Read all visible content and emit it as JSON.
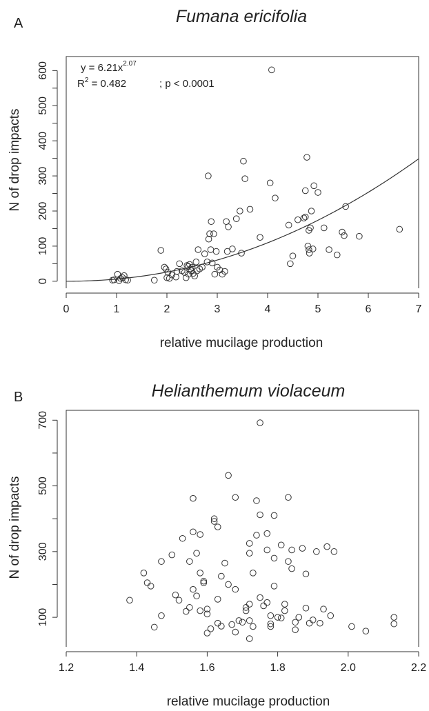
{
  "chart_data": [
    {
      "panel": "A",
      "type": "scatter",
      "title": "Fumana ericifolia",
      "xlabel": "relative mucilage production",
      "ylabel": "N of drop impacts",
      "xlim": [
        0,
        7
      ],
      "ylim": [
        -20,
        640
      ],
      "xticks": [
        "0",
        "1",
        "2",
        "3",
        "4",
        "5",
        "6",
        "7"
      ],
      "yticks": [
        "0",
        "100",
        "200",
        "300",
        "400",
        "500",
        "600"
      ],
      "annotation": {
        "equation": "y = 6.21x",
        "exponent": "2.07",
        "r2_label": "R",
        "r2_sup": "2",
        "r2_value": " = 0.482",
        "p_value": "; p < 0.0001"
      },
      "fit": {
        "type": "power",
        "a": 6.21,
        "b": 2.07
      },
      "points": [
        [
          0.92,
          3
        ],
        [
          0.95,
          4
        ],
        [
          1.02,
          20
        ],
        [
          1.05,
          2
        ],
        [
          1.08,
          8
        ],
        [
          1.12,
          10
        ],
        [
          1.15,
          16
        ],
        [
          1.18,
          4
        ],
        [
          1.22,
          3
        ],
        [
          1.75,
          3
        ],
        [
          1.88,
          88
        ],
        [
          1.95,
          40
        ],
        [
          1.98,
          35
        ],
        [
          2.0,
          10
        ],
        [
          2.02,
          25
        ],
        [
          2.05,
          8
        ],
        [
          2.1,
          18
        ],
        [
          2.18,
          12
        ],
        [
          2.2,
          28
        ],
        [
          2.25,
          50
        ],
        [
          2.3,
          30
        ],
        [
          2.35,
          25
        ],
        [
          2.38,
          10
        ],
        [
          2.4,
          45
        ],
        [
          2.42,
          42
        ],
        [
          2.43,
          20
        ],
        [
          2.45,
          48
        ],
        [
          2.47,
          35
        ],
        [
          2.48,
          30
        ],
        [
          2.5,
          40
        ],
        [
          2.52,
          22
        ],
        [
          2.55,
          15
        ],
        [
          2.58,
          55
        ],
        [
          2.6,
          30
        ],
        [
          2.62,
          90
        ],
        [
          2.65,
          35
        ],
        [
          2.7,
          40
        ],
        [
          2.75,
          78
        ],
        [
          2.8,
          55
        ],
        [
          2.82,
          300
        ],
        [
          2.83,
          120
        ],
        [
          2.85,
          135
        ],
        [
          2.87,
          90
        ],
        [
          2.88,
          170
        ],
        [
          2.9,
          52
        ],
        [
          2.93,
          135
        ],
        [
          2.95,
          20
        ],
        [
          2.98,
          85
        ],
        [
          3.0,
          40
        ],
        [
          3.05,
          32
        ],
        [
          3.1,
          20
        ],
        [
          3.15,
          28
        ],
        [
          3.18,
          170
        ],
        [
          3.2,
          85
        ],
        [
          3.22,
          155
        ],
        [
          3.3,
          92
        ],
        [
          3.38,
          178
        ],
        [
          3.45,
          200
        ],
        [
          3.48,
          80
        ],
        [
          3.52,
          342
        ],
        [
          3.55,
          292
        ],
        [
          3.65,
          205
        ],
        [
          3.85,
          125
        ],
        [
          4.05,
          280
        ],
        [
          4.08,
          602
        ],
        [
          4.15,
          237
        ],
        [
          4.42,
          160
        ],
        [
          4.45,
          50
        ],
        [
          4.5,
          72
        ],
        [
          4.6,
          175
        ],
        [
          4.72,
          180
        ],
        [
          4.75,
          183
        ],
        [
          4.75,
          258
        ],
        [
          4.78,
          353
        ],
        [
          4.8,
          100
        ],
        [
          4.82,
          90
        ],
        [
          4.82,
          145
        ],
        [
          4.83,
          80
        ],
        [
          4.85,
          152
        ],
        [
          4.87,
          200
        ],
        [
          4.9,
          92
        ],
        [
          4.92,
          272
        ],
        [
          5.0,
          253
        ],
        [
          5.12,
          152
        ],
        [
          5.22,
          90
        ],
        [
          5.38,
          75
        ],
        [
          5.48,
          140
        ],
        [
          5.52,
          130
        ],
        [
          5.55,
          213
        ],
        [
          5.82,
          128
        ],
        [
          6.62,
          148
        ]
      ]
    },
    {
      "panel": "B",
      "type": "scatter",
      "title": "Helianthemum violaceum",
      "xlabel": "relative mucilage production",
      "ylabel": "N of drop impacts",
      "xlim": [
        1.2,
        2.2
      ],
      "ylim": [
        10,
        730
      ],
      "xticks": [
        "1.2",
        "1.4",
        "1.6",
        "1.8",
        "2.0",
        "2.2"
      ],
      "yticks": [
        "100",
        "300",
        "500",
        "700"
      ],
      "points": [
        [
          1.38,
          152
        ],
        [
          1.42,
          235
        ],
        [
          1.43,
          205
        ],
        [
          1.44,
          195
        ],
        [
          1.45,
          70
        ],
        [
          1.47,
          105
        ],
        [
          1.47,
          270
        ],
        [
          1.5,
          290
        ],
        [
          1.51,
          168
        ],
        [
          1.52,
          152
        ],
        [
          1.53,
          340
        ],
        [
          1.54,
          118
        ],
        [
          1.55,
          270
        ],
        [
          1.55,
          130
        ],
        [
          1.56,
          185
        ],
        [
          1.56,
          360
        ],
        [
          1.56,
          462
        ],
        [
          1.57,
          295
        ],
        [
          1.57,
          165
        ],
        [
          1.58,
          120
        ],
        [
          1.58,
          235
        ],
        [
          1.58,
          352
        ],
        [
          1.59,
          205
        ],
        [
          1.59,
          210
        ],
        [
          1.6,
          52
        ],
        [
          1.6,
          110
        ],
        [
          1.6,
          125
        ],
        [
          1.61,
          65
        ],
        [
          1.62,
          392
        ],
        [
          1.62,
          400
        ],
        [
          1.63,
          375
        ],
        [
          1.63,
          155
        ],
        [
          1.63,
          82
        ],
        [
          1.64,
          73
        ],
        [
          1.64,
          225
        ],
        [
          1.65,
          265
        ],
        [
          1.66,
          532
        ],
        [
          1.66,
          200
        ],
        [
          1.67,
          78
        ],
        [
          1.68,
          465
        ],
        [
          1.68,
          55
        ],
        [
          1.68,
          185
        ],
        [
          1.69,
          90
        ],
        [
          1.7,
          85
        ],
        [
          1.71,
          130
        ],
        [
          1.71,
          120
        ],
        [
          1.72,
          325
        ],
        [
          1.72,
          295
        ],
        [
          1.72,
          140
        ],
        [
          1.72,
          90
        ],
        [
          1.72,
          35
        ],
        [
          1.73,
          235
        ],
        [
          1.73,
          72
        ],
        [
          1.74,
          350
        ],
        [
          1.74,
          455
        ],
        [
          1.75,
          412
        ],
        [
          1.75,
          160
        ],
        [
          1.75,
          692
        ],
        [
          1.76,
          135
        ],
        [
          1.77,
          355
        ],
        [
          1.77,
          305
        ],
        [
          1.77,
          145
        ],
        [
          1.78,
          105
        ],
        [
          1.78,
          80
        ],
        [
          1.78,
          72
        ],
        [
          1.79,
          410
        ],
        [
          1.79,
          280
        ],
        [
          1.79,
          195
        ],
        [
          1.8,
          100
        ],
        [
          1.81,
          320
        ],
        [
          1.81,
          98
        ],
        [
          1.82,
          140
        ],
        [
          1.82,
          120
        ],
        [
          1.83,
          465
        ],
        [
          1.83,
          270
        ],
        [
          1.84,
          305
        ],
        [
          1.84,
          248
        ],
        [
          1.85,
          85
        ],
        [
          1.85,
          62
        ],
        [
          1.86,
          100
        ],
        [
          1.87,
          310
        ],
        [
          1.88,
          232
        ],
        [
          1.88,
          128
        ],
        [
          1.89,
          82
        ],
        [
          1.9,
          92
        ],
        [
          1.91,
          300
        ],
        [
          1.92,
          82
        ],
        [
          1.93,
          125
        ],
        [
          1.94,
          315
        ],
        [
          1.95,
          105
        ],
        [
          1.96,
          300
        ],
        [
          2.01,
          72
        ],
        [
          2.05,
          58
        ],
        [
          2.13,
          100
        ],
        [
          2.13,
          80
        ]
      ]
    }
  ]
}
